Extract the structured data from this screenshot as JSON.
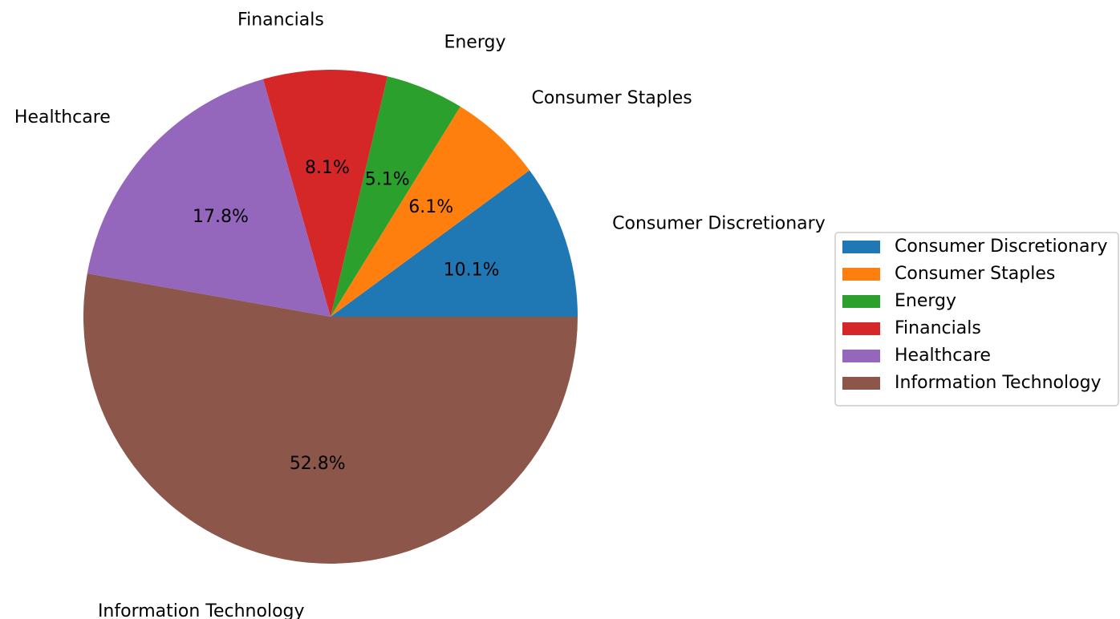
{
  "chart_data": {
    "type": "pie",
    "categories": [
      "Consumer Discretionary",
      "Consumer Staples",
      "Energy",
      "Financials",
      "Healthcare",
      "Information Technology"
    ],
    "values": [
      10.1,
      6.1,
      5.1,
      8.1,
      17.8,
      52.8
    ],
    "value_labels": [
      "10.1%",
      "6.1%",
      "5.1%",
      "8.1%",
      "17.8%",
      "52.8%"
    ],
    "colors": [
      "#1f77b4",
      "#ff7f0e",
      "#2ca02c",
      "#d62728",
      "#9467bd",
      "#8c564b"
    ],
    "legend": "right"
  }
}
